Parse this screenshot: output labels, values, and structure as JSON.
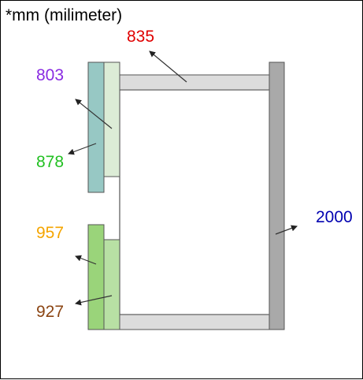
{
  "unit_note": "*mm (milimeter)",
  "labels": {
    "top_beam": {
      "text": "835",
      "color": "#e00000"
    },
    "upper_left_outer": {
      "text": "803",
      "color": "#8a2be2"
    },
    "upper_left_inner": {
      "text": "878",
      "color": "#22c022"
    },
    "lower_left_outer": {
      "text": "957",
      "color": "#f5a500"
    },
    "lower_left_inner": {
      "text": "927",
      "color": "#8b4513"
    },
    "right_post": {
      "text": "2000",
      "color": "#0000b0"
    }
  },
  "colors": {
    "beam_fill": "#dcdcdc",
    "post_fill": "#a9a9a9",
    "teal_panel": "#97c8c4",
    "light_green_panel": "#dcecd6",
    "green_panel": "#9ad47a",
    "mid_green_panel": "#b8e0a4",
    "outline": "#555555"
  }
}
